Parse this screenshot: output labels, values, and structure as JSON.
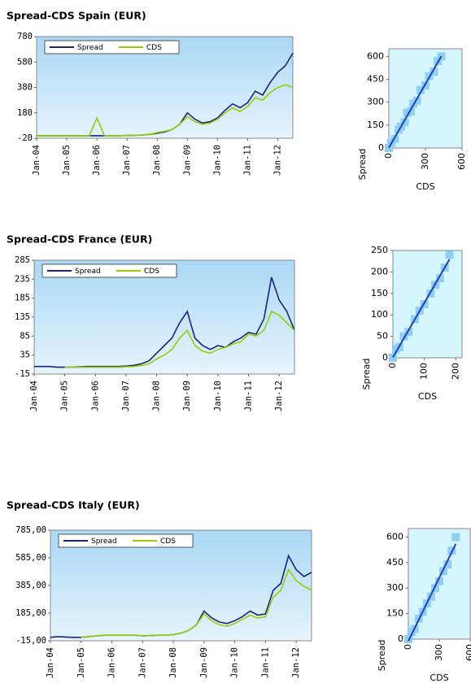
{
  "chart_data": [
    {
      "type": "line",
      "title": "Spread-CDS Spain (EUR)",
      "categories": [
        "Jan-04",
        null,
        null,
        null,
        "Jan-05",
        null,
        null,
        null,
        "Jan-06",
        null,
        null,
        null,
        "Jan-07",
        null,
        null,
        null,
        "Jan-08",
        null,
        null,
        null,
        "Jan-09",
        null,
        null,
        null,
        "Jan-10",
        null,
        null,
        null,
        "Jan-11",
        null,
        null,
        null,
        "Jan-12",
        null,
        null
      ],
      "series": [
        {
          "name": "Spread",
          "color": "#1a237e",
          "values": [
            0,
            0,
            0,
            0,
            0,
            0,
            0,
            0,
            0,
            0,
            0,
            0,
            2,
            3,
            5,
            10,
            20,
            30,
            50,
            90,
            180,
            130,
            100,
            110,
            140,
            200,
            250,
            220,
            260,
            350,
            320,
            420,
            500,
            550,
            650
          ]
        },
        {
          "name": "CDS",
          "color": "#99cc00",
          "values": [
            0,
            0,
            0,
            0,
            0,
            0,
            0,
            0,
            140,
            0,
            0,
            0,
            2,
            3,
            5,
            10,
            25,
            35,
            50,
            90,
            150,
            110,
            90,
            100,
            130,
            180,
            220,
            190,
            230,
            300,
            280,
            340,
            380,
            400,
            380
          ]
        }
      ],
      "ylim": [
        -20,
        780
      ],
      "yticks": [
        -20,
        180,
        380,
        580,
        780
      ],
      "legend": "top-left"
    },
    {
      "type": "scatter",
      "xlabel": "CDS",
      "ylabel": "Spread",
      "color": "#8fd0f0",
      "line_color": "#1f3fbf",
      "x": [
        0,
        20,
        50,
        80,
        100,
        130,
        150,
        180,
        200,
        230,
        260,
        300,
        330,
        370,
        400,
        430
      ],
      "y": [
        0,
        35,
        60,
        120,
        140,
        170,
        230,
        240,
        290,
        310,
        380,
        410,
        470,
        500,
        570,
        600
      ],
      "xlim": [
        0,
        600
      ],
      "ylim": [
        0,
        650
      ],
      "xticks": [
        0,
        300,
        600
      ],
      "yticks": [
        0,
        150,
        300,
        450,
        600
      ]
    },
    {
      "type": "line",
      "title": "Spread-CDS France (EUR)",
      "categories": [
        "Jan-04",
        null,
        null,
        null,
        "Jan-05",
        null,
        null,
        null,
        "Jan-06",
        null,
        null,
        null,
        "Jan-07",
        null,
        null,
        null,
        "Jan-08",
        null,
        null,
        null,
        "Jan-09",
        null,
        null,
        null,
        "Jan-10",
        null,
        null,
        null,
        "Jan-11",
        null,
        null,
        null,
        "Jan-12",
        null,
        null
      ],
      "series": [
        {
          "name": "Spread",
          "color": "#1a237e",
          "values": [
            5,
            5,
            5,
            3,
            3,
            3,
            4,
            5,
            5,
            5,
            5,
            5,
            6,
            8,
            12,
            20,
            40,
            60,
            80,
            120,
            150,
            80,
            60,
            50,
            60,
            55,
            70,
            80,
            95,
            90,
            130,
            240,
            180,
            150,
            100
          ]
        },
        {
          "name": "CDS",
          "color": "#99cc00",
          "values": [
            null,
            null,
            null,
            null,
            3,
            3,
            3,
            3,
            3,
            3,
            3,
            3,
            4,
            5,
            8,
            12,
            25,
            35,
            50,
            80,
            100,
            60,
            45,
            40,
            50,
            55,
            65,
            70,
            90,
            85,
            100,
            150,
            140,
            120,
            100
          ]
        }
      ],
      "ylim": [
        -15,
        285
      ],
      "yticks": [
        -15,
        35,
        85,
        135,
        185,
        235,
        285
      ],
      "legend": "top-left"
    },
    {
      "type": "scatter",
      "xlabel": "CDS",
      "ylabel": "Spread",
      "color": "#8fd0f0",
      "line_color": "#1f3fbf",
      "x": [
        0,
        10,
        20,
        35,
        50,
        70,
        85,
        100,
        120,
        135,
        150,
        165,
        180
      ],
      "y": [
        0,
        20,
        25,
        50,
        60,
        90,
        110,
        125,
        150,
        170,
        185,
        210,
        240
      ],
      "xlim": [
        0,
        220
      ],
      "ylim": [
        0,
        250
      ],
      "xticks": [
        0,
        100,
        200
      ],
      "yticks": [
        0,
        50,
        100,
        150,
        200,
        250
      ]
    },
    {
      "type": "line",
      "title": "Spread-CDS Italy (EUR)",
      "categories": [
        "Jan-04",
        null,
        null,
        null,
        "Jan-05",
        null,
        null,
        null,
        "Jan-06",
        null,
        null,
        null,
        "Jan-07",
        null,
        null,
        null,
        "Jan-08",
        null,
        null,
        null,
        "Jan-09",
        null,
        null,
        null,
        "Jan-10",
        null,
        null,
        null,
        "Jan-11",
        null,
        null,
        null,
        "Jan-12",
        null,
        null
      ],
      "series": [
        {
          "name": "Spread",
          "color": "#1a237e",
          "values": [
            10,
            15,
            12,
            10,
            10,
            15,
            20,
            25,
            25,
            25,
            25,
            25,
            20,
            22,
            25,
            25,
            30,
            40,
            60,
            100,
            200,
            150,
            120,
            110,
            130,
            160,
            200,
            170,
            180,
            350,
            400,
            600,
            500,
            450,
            480
          ]
        },
        {
          "name": "CDS",
          "color": "#99cc00",
          "values": [
            null,
            null,
            null,
            null,
            10,
            15,
            20,
            25,
            25,
            25,
            25,
            25,
            20,
            22,
            25,
            25,
            30,
            40,
            60,
            100,
            180,
            130,
            100,
            90,
            110,
            140,
            170,
            150,
            160,
            300,
            350,
            500,
            420,
            380,
            350
          ]
        }
      ],
      "ylim": [
        -15,
        785
      ],
      "yticks": [
        {
          "value": -15,
          "label": "-15,00"
        },
        {
          "value": 185,
          "label": "185,00"
        },
        {
          "value": 385,
          "label": "385,00"
        },
        {
          "value": 585,
          "label": "585,00"
        },
        {
          "value": 785,
          "label": "785,00"
        }
      ],
      "legend": "top-left"
    },
    {
      "type": "scatter",
      "xlabel": "CDS",
      "ylabel": "Spread",
      "color": "#8fd0f0",
      "line_color": "#1f3fbf",
      "x": [
        0,
        30,
        60,
        100,
        140,
        180,
        220,
        260,
        300,
        340,
        380,
        420,
        460
      ],
      "y": [
        0,
        40,
        60,
        120,
        160,
        210,
        250,
        300,
        340,
        400,
        440,
        520,
        600
      ],
      "xlim": [
        0,
        600
      ],
      "ylim": [
        0,
        650
      ],
      "xticks": [
        0,
        300,
        600
      ],
      "yticks": [
        0,
        150,
        300,
        450,
        600
      ]
    }
  ]
}
